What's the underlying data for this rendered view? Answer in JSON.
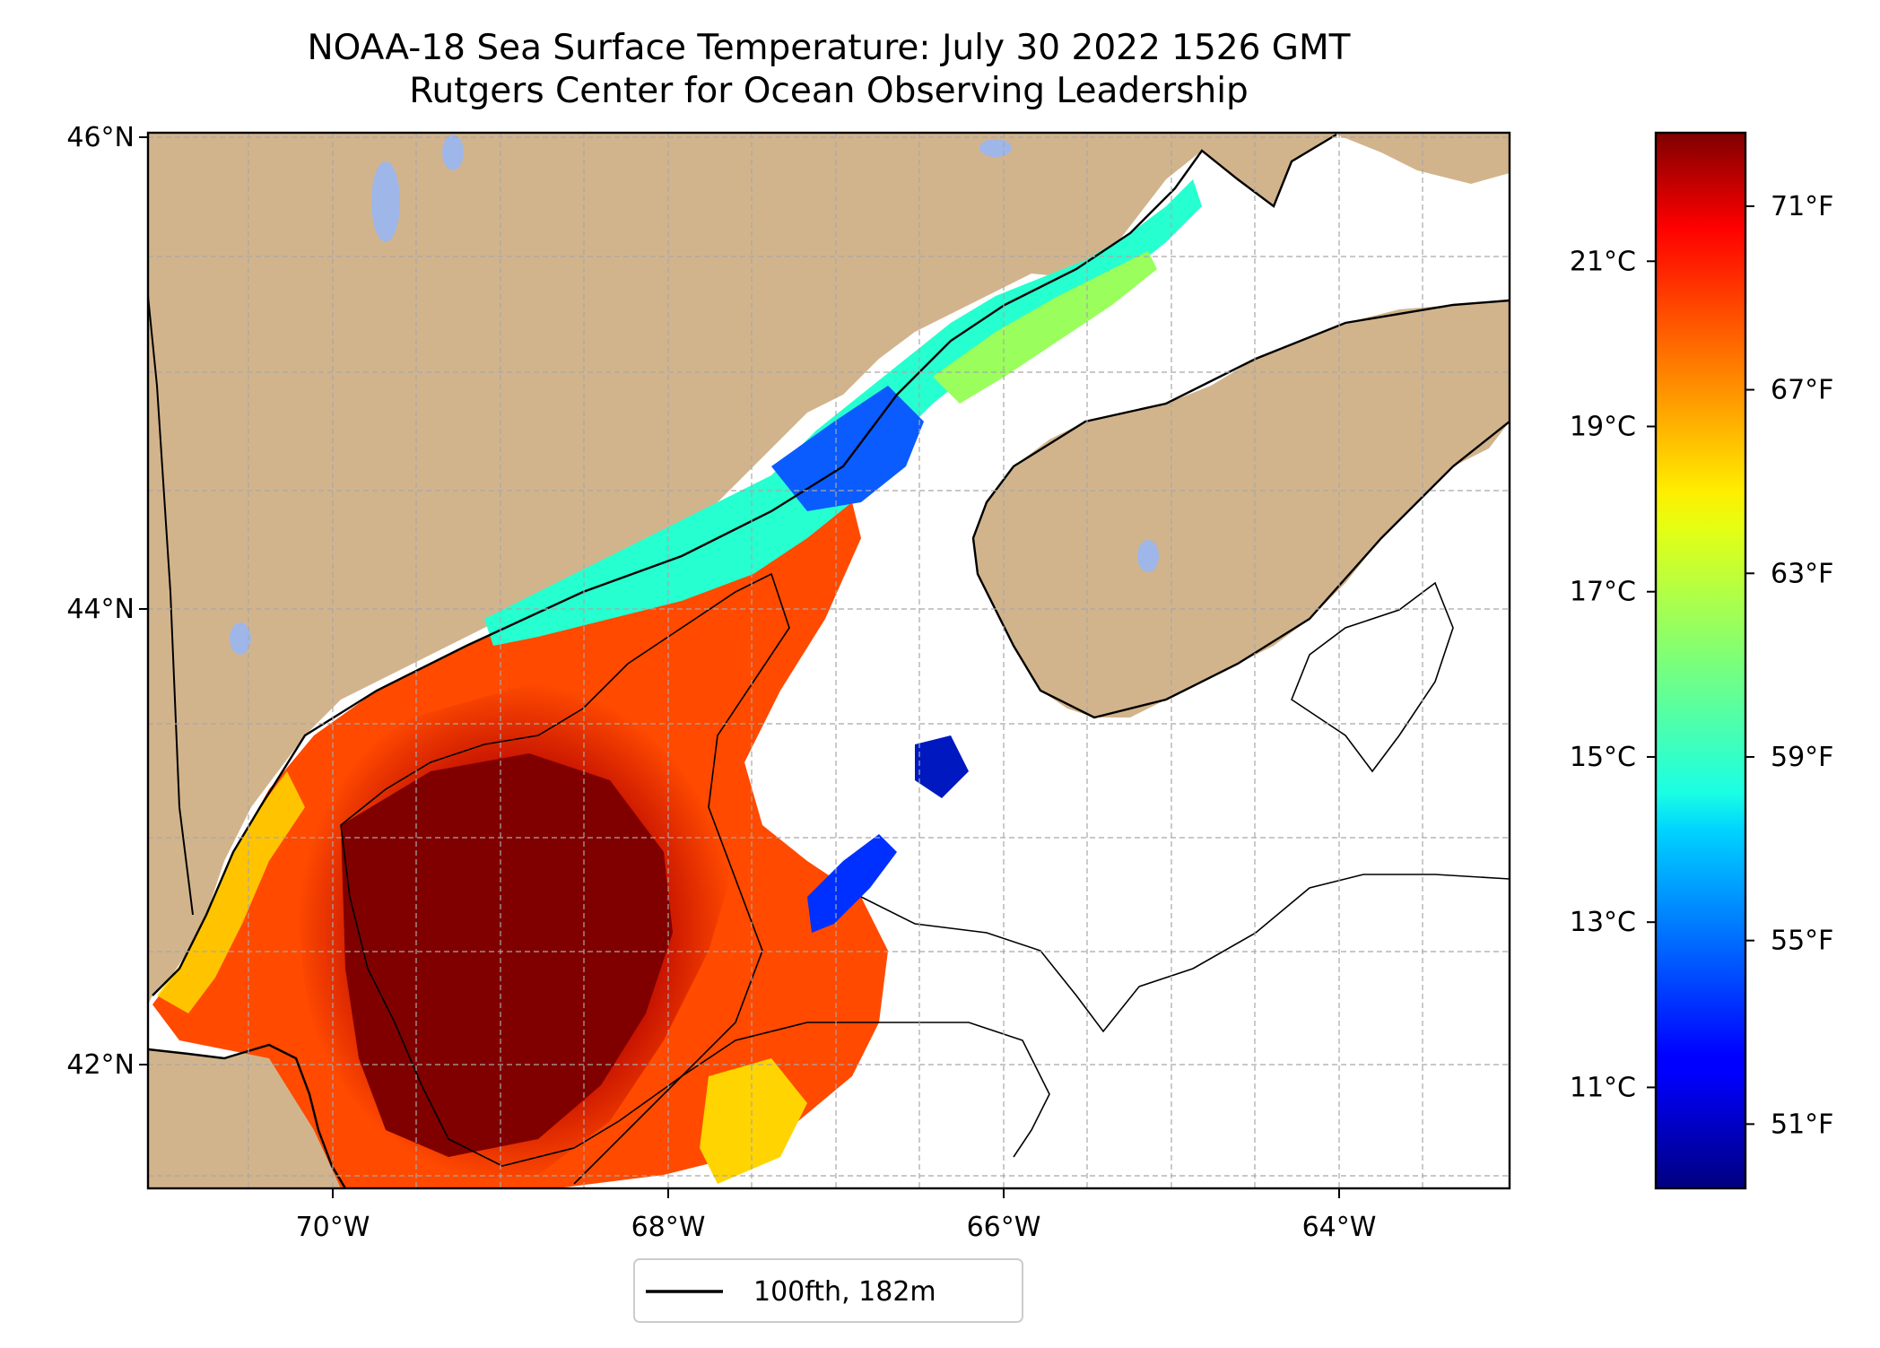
{
  "title": {
    "line1": "NOAA-18 Sea Surface Temperature: July 30 2022 1526 GMT",
    "line2": "Rutgers Center for Ocean Observing Leadership"
  },
  "map": {
    "projection": "Mercator",
    "lon_range": [
      -71.1,
      -63.0
    ],
    "lat_range": [
      41.5,
      46.0
    ],
    "land_color": "#d2b48c",
    "lake_color": "#9fb6e8",
    "no_data_color": "#ffffff",
    "gridlines": "dashed gray",
    "lat_ticks": [
      {
        "value": 46,
        "label": "46°N"
      },
      {
        "value": 44,
        "label": "44°N"
      },
      {
        "value": 42,
        "label": "42°N"
      }
    ],
    "lon_ticks": [
      {
        "value": -70,
        "label": "70°W"
      },
      {
        "value": -68,
        "label": "68°W"
      },
      {
        "value": -66,
        "label": "66°W"
      },
      {
        "value": -64,
        "label": "64°W"
      }
    ]
  },
  "legend": {
    "entry": "100fth, 182m",
    "line_color": "#000000",
    "placement": "bottom-center"
  },
  "colorbar": {
    "colormap": "jet",
    "range_f": [
      49.6,
      72.6
    ],
    "fahrenheit_ticks": [
      "71°F",
      "67°F",
      "63°F",
      "59°F",
      "55°F",
      "51°F"
    ],
    "fahrenheit_values": [
      71,
      67,
      63,
      59,
      55,
      51
    ],
    "celsius_ticks": [
      "21°C",
      "19°C",
      "17°C",
      "15°C",
      "13°C",
      "11°C"
    ],
    "celsius_values": [
      21,
      19,
      17,
      15,
      13,
      11
    ]
  }
}
